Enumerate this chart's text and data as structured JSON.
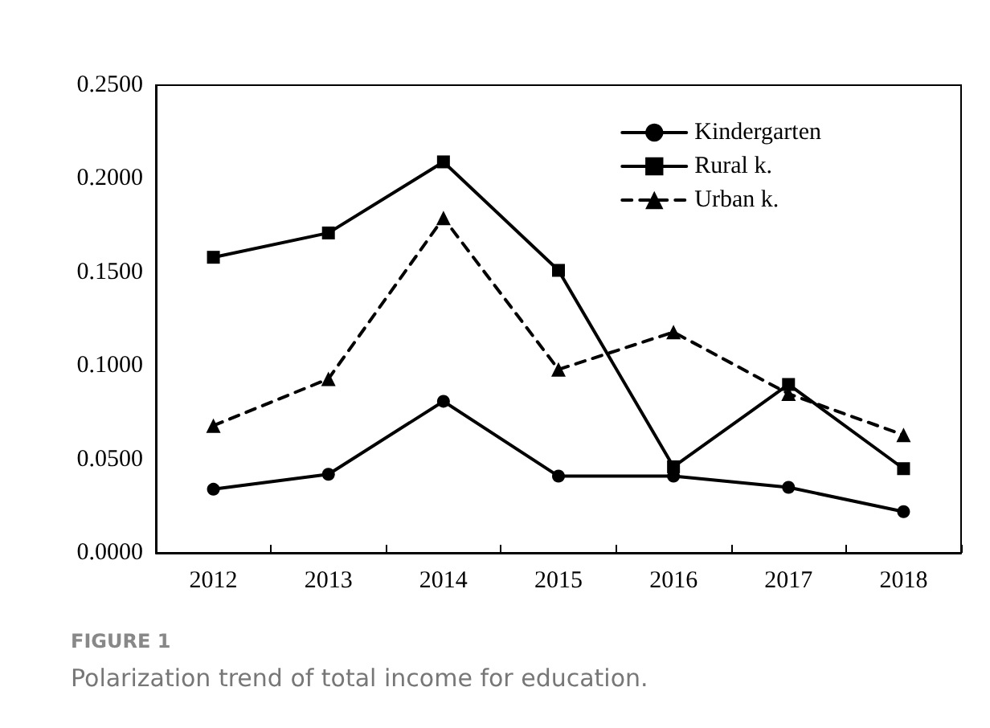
{
  "chart_data": {
    "type": "line",
    "title": "FIGURE 1",
    "subtitle": "Polarization trend of total income for education.",
    "categories": [
      "2012",
      "2013",
      "2014",
      "2015",
      "2016",
      "2017",
      "2018"
    ],
    "series": [
      {
        "name": "Kindergarten",
        "color": "#000000",
        "marker": "circle",
        "line_style": "solid",
        "values": [
          0.034,
          0.042,
          0.081,
          0.041,
          0.041,
          0.035,
          0.022
        ]
      },
      {
        "name": "Rural k.",
        "color": "#000000",
        "marker": "square",
        "line_style": "solid",
        "values": [
          0.158,
          0.171,
          0.209,
          0.151,
          0.046,
          0.09,
          0.045
        ]
      },
      {
        "name": "Urban k.",
        "color": "#000000",
        "marker": "triangle",
        "line_style": "dashed",
        "values": [
          0.068,
          0.093,
          0.179,
          0.098,
          0.118,
          0.085,
          0.063
        ]
      }
    ],
    "ylim": [
      0,
      0.25
    ],
    "yticks": [
      {
        "value": 0,
        "label": "0.0000"
      },
      {
        "value": 0.05,
        "label": "0.0500"
      },
      {
        "value": 0.1,
        "label": "0.1000"
      },
      {
        "value": 0.15,
        "label": "0.1500"
      },
      {
        "value": 0.2,
        "label": "0.2000"
      },
      {
        "value": 0.25,
        "label": "0.2500"
      }
    ],
    "grid": false,
    "legend": "top right"
  }
}
